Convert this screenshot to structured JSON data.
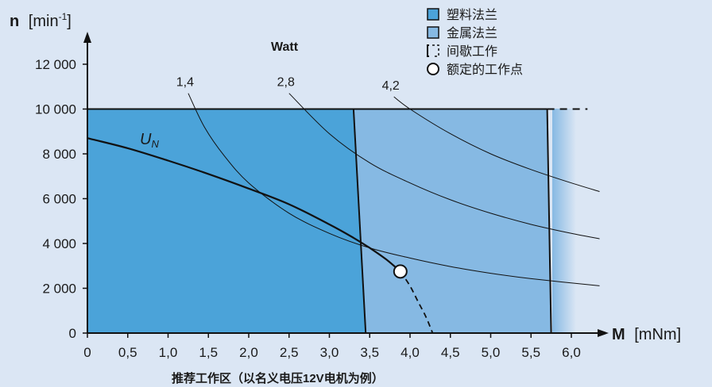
{
  "chart_data": {
    "type": "line",
    "y_title_bold": "n",
    "y_title_unit": "[min",
    "y_title_sup": "-1",
    "y_title_close": "]",
    "x_title_bold": "M",
    "x_title_unit": "[mNm]",
    "footnote": "推荐工作区（以名义电压12V电机为例）",
    "watt_title": "Watt",
    "xlim": [
      0,
      6.0
    ],
    "ylim": [
      0,
      13000
    ],
    "x_ticks": [
      0,
      0.5,
      1.0,
      1.5,
      2.0,
      2.5,
      3.0,
      3.5,
      4.0,
      4.5,
      5.0,
      5.5,
      6.0
    ],
    "x_tick_labels": [
      "0",
      "0,5",
      "1,0",
      "1,5",
      "2,0",
      "2,5",
      "3,0",
      "3,5",
      "4,0",
      "4,5",
      "5,0",
      "5,5",
      "6,0"
    ],
    "y_ticks": [
      0,
      2000,
      4000,
      6000,
      8000,
      10000,
      12000
    ],
    "y_tick_labels": [
      "0",
      "2 000",
      "4 000",
      "6 000",
      "8 000",
      "10 000",
      "12 000"
    ],
    "regions": [
      {
        "name": "塑料法兰",
        "color": "#4ba3d9",
        "boundary": [
          [
            0,
            10000
          ],
          [
            3.3,
            10000
          ],
          [
            3.45,
            0
          ],
          [
            0,
            0
          ]
        ]
      },
      {
        "name": "金属法兰",
        "color": "#86b9e3",
        "boundary": [
          [
            3.3,
            10000
          ],
          [
            5.7,
            10000
          ],
          [
            5.75,
            0
          ],
          [
            3.45,
            0
          ]
        ]
      }
    ],
    "legend": [
      {
        "label": "塑料法兰",
        "symbol": "box",
        "color": "#4ba3d9"
      },
      {
        "label": "金属法兰",
        "symbol": "box",
        "color": "#86b9e3"
      },
      {
        "label": "间歇工作",
        "symbol": "dashed-box"
      },
      {
        "label": "额定的工作点",
        "symbol": "circle"
      }
    ],
    "power_curves": [
      {
        "label": "1,4",
        "watts": 1.4,
        "x": [
          1.25,
          1.45,
          1.7,
          2.0,
          2.5,
          3.0,
          3.5,
          4.0,
          4.5,
          5.0,
          5.5,
          6.35
        ],
        "y": [
          10700,
          9200,
          7900,
          6700,
          5350,
          4450,
          3800,
          3350,
          2970,
          2670,
          2430,
          2110
        ]
      },
      {
        "label": "2,8",
        "watts": 2.8,
        "x": [
          2.5,
          3.0,
          3.5,
          4.0,
          4.5,
          5.0,
          5.5,
          6.0,
          6.35
        ],
        "y": [
          10700,
          8900,
          7600,
          6700,
          5950,
          5350,
          4850,
          4450,
          4210
        ]
      },
      {
        "label": "4,2",
        "watts": 4.2,
        "x": [
          3.8,
          4.0,
          4.5,
          5.0,
          5.5,
          6.0,
          6.35
        ],
        "y": [
          10550,
          10000,
          8900,
          8000,
          7300,
          6700,
          6320
        ]
      }
    ],
    "un_curve": {
      "label": "UN",
      "x": [
        0,
        0.5,
        1.0,
        1.5,
        2.0,
        2.5,
        3.0,
        3.3,
        3.5,
        3.7,
        3.88
      ],
      "y": [
        8700,
        8250,
        7700,
        7100,
        6450,
        5750,
        4850,
        4250,
        3800,
        3300,
        2750
      ]
    },
    "un_dashed": {
      "x": [
        3.88,
        4.0,
        4.1,
        4.2,
        4.28
      ],
      "y": [
        2750,
        2100,
        1400,
        700,
        0
      ]
    },
    "rated_point": {
      "x": 3.88,
      "y": 2750
    },
    "intermittent_lines": [
      {
        "x": [
          5.7,
          6.2
        ],
        "y": [
          10000,
          10000
        ]
      },
      {
        "x": [
          5.75,
          6.2
        ],
        "y": [
          0,
          0
        ]
      }
    ]
  }
}
